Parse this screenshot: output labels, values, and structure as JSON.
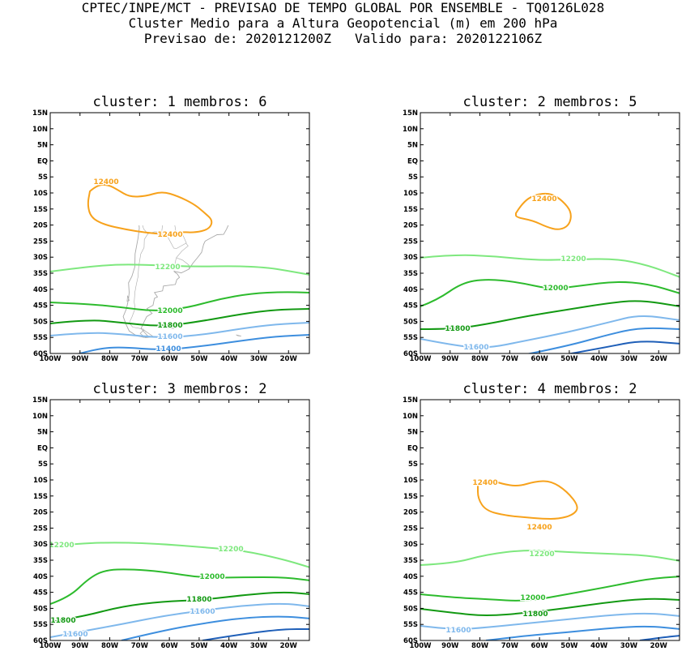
{
  "header": {
    "line1": "CPTEC/INPE/MCT - PREVISAO DE TEMPO GLOBAL POR ENSEMBLE - TQ0126L028",
    "line2": "Cluster Medio para a Altura Geopotencial (m) em 200 hPa",
    "line3": "Previsao de: 2020121200Z   Valido para: 2020122106Z"
  },
  "lat_ticks": [
    "15N",
    "10N",
    "5N",
    "EQ",
    "5S",
    "10S",
    "15S",
    "20S",
    "25S",
    "30S",
    "35S",
    "40S",
    "45S",
    "50S",
    "55S",
    "60S"
  ],
  "lon_ticks": [
    "100W",
    "90W",
    "80W",
    "70W",
    "60W",
    "50W",
    "40W",
    "30W",
    "20W"
  ],
  "colors": {
    "12400": "#f7a21c",
    "12200": "#7ee87e",
    "12000": "#2dbb2d",
    "11800": "#129912",
    "11600": "#7fb8ec",
    "11400": "#3d8ede",
    "11200": "#1f5fb8",
    "coast": "#a9a9a9"
  },
  "panels": [
    {
      "title": "cluster: 1   membros: 6",
      "labels": [
        "12400",
        "12400",
        "12200",
        "12000",
        "11800",
        "11600",
        "11400"
      ]
    },
    {
      "title": "cluster: 2   membros: 5",
      "labels": [
        "12400",
        "12200",
        "12000",
        "11800",
        "11600"
      ]
    },
    {
      "title": "cluster: 3   membros: 2",
      "labels": [
        "12200",
        "12200",
        "12000",
        "11800",
        "11800",
        "11600",
        "11600"
      ]
    },
    {
      "title": "cluster: 4   membros: 2",
      "labels": [
        "12400",
        "12400",
        "12200",
        "12000",
        "11800",
        "11600"
      ]
    }
  ]
}
